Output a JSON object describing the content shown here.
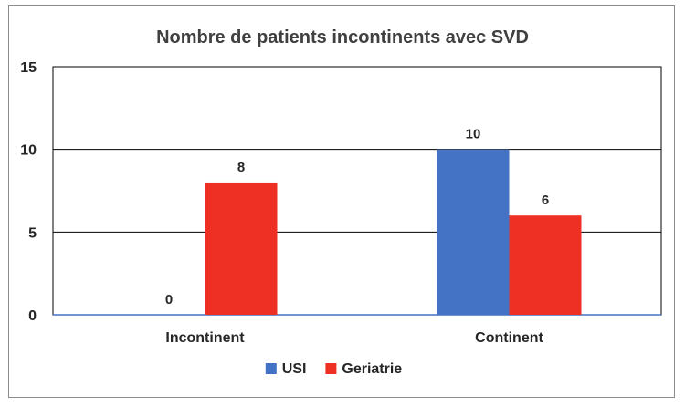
{
  "chart_data": {
    "type": "bar",
    "title": "Nombre de patients incontinents avec SVD",
    "categories": [
      "Incontinent",
      "Continent"
    ],
    "series": [
      {
        "name": "USI",
        "values": [
          0,
          10
        ],
        "color": "#4472c4"
      },
      {
        "name": "Geriatrie",
        "values": [
          8,
          6
        ],
        "color": "#ee3024"
      }
    ],
    "ylim": [
      0,
      15
    ],
    "yticks": [
      0,
      5,
      10,
      15
    ],
    "grid": true,
    "legend_position": "bottom",
    "data_labels": true
  }
}
